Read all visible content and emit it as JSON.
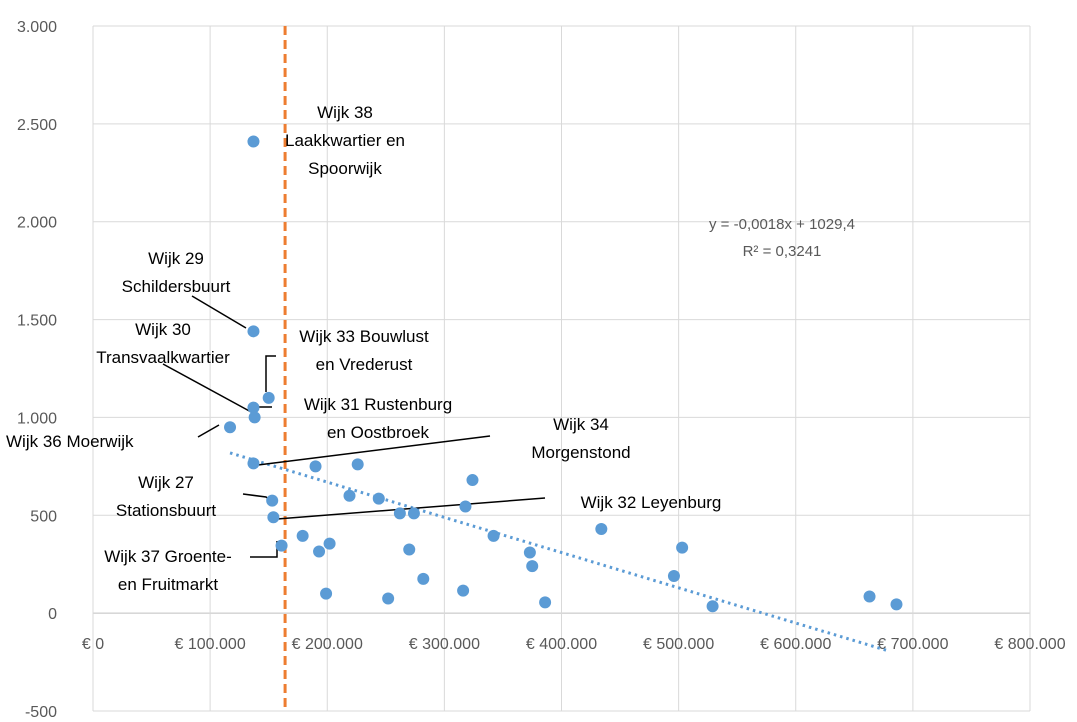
{
  "chart_data": {
    "type": "scatter",
    "colors": {
      "points": "#5b9bd5",
      "trendline": "#5b9bd5",
      "reference_line": "#ed7d31",
      "grid": "#d9d9d9",
      "text": "#595959"
    },
    "xlim": [
      0,
      800000
    ],
    "ylim": [
      -500,
      3000
    ],
    "grid": true,
    "legend": "none",
    "x_ticks": [
      {
        "value": 0,
        "label": "€ 0"
      },
      {
        "value": 100000,
        "label": "€ 100.000"
      },
      {
        "value": 200000,
        "label": "€ 200.000"
      },
      {
        "value": 300000,
        "label": "€ 300.000"
      },
      {
        "value": 400000,
        "label": "€ 400.000"
      },
      {
        "value": 500000,
        "label": "€ 500.000"
      },
      {
        "value": 600000,
        "label": "€ 600.000"
      },
      {
        "value": 700000,
        "label": "€ 700.000"
      },
      {
        "value": 800000,
        "label": "€ 800.000"
      }
    ],
    "y_ticks": [
      {
        "value": 3000,
        "label": "3.000"
      },
      {
        "value": 2500,
        "label": "2.500"
      },
      {
        "value": 2000,
        "label": "2.000"
      },
      {
        "value": 1500,
        "label": "1.500"
      },
      {
        "value": 1000,
        "label": "1.000"
      },
      {
        "value": 500,
        "label": "500"
      },
      {
        "value": 0,
        "label": "0"
      },
      {
        "value": -500,
        "label": "-500"
      }
    ],
    "reference_line_x": 164000,
    "trendline": {
      "slope": -0.0018,
      "intercept": 1029.4,
      "x_range": [
        117000,
        680000
      ],
      "equation": "y = -0,0018x + 1029,4",
      "r_squared": "R² = 0,3241"
    },
    "points": [
      {
        "x": 117000,
        "y": 950
      },
      {
        "x": 137000,
        "y": 2410
      },
      {
        "x": 137000,
        "y": 1440
      },
      {
        "x": 137000,
        "y": 1050
      },
      {
        "x": 138000,
        "y": 1000
      },
      {
        "x": 137000,
        "y": 765
      },
      {
        "x": 150000,
        "y": 1100
      },
      {
        "x": 153000,
        "y": 575
      },
      {
        "x": 154000,
        "y": 490
      },
      {
        "x": 161000,
        "y": 345
      },
      {
        "x": 179000,
        "y": 395
      },
      {
        "x": 190000,
        "y": 750
      },
      {
        "x": 193000,
        "y": 315
      },
      {
        "x": 199000,
        "y": 100
      },
      {
        "x": 202000,
        "y": 355
      },
      {
        "x": 219000,
        "y": 600
      },
      {
        "x": 226000,
        "y": 760
      },
      {
        "x": 244000,
        "y": 585
      },
      {
        "x": 252000,
        "y": 75
      },
      {
        "x": 262000,
        "y": 510
      },
      {
        "x": 270000,
        "y": 325
      },
      {
        "x": 274000,
        "y": 510
      },
      {
        "x": 282000,
        "y": 175
      },
      {
        "x": 316000,
        "y": 115
      },
      {
        "x": 318000,
        "y": 545
      },
      {
        "x": 324000,
        "y": 680
      },
      {
        "x": 342000,
        "y": 395
      },
      {
        "x": 373000,
        "y": 310
      },
      {
        "x": 375000,
        "y": 240
      },
      {
        "x": 386000,
        "y": 55
      },
      {
        "x": 434000,
        "y": 430
      },
      {
        "x": 496000,
        "y": 190
      },
      {
        "x": 503000,
        "y": 335
      },
      {
        "x": 529000,
        "y": 35
      },
      {
        "x": 663000,
        "y": 85
      },
      {
        "x": 686000,
        "y": 45
      }
    ],
    "annotations": [
      {
        "lines": [
          "Wijk 38",
          "Laakkwartier en",
          "Spoorwijk"
        ]
      },
      {
        "lines": [
          "Wijk 29",
          "Schildersbuurt"
        ]
      },
      {
        "lines": [
          "Wijk 30",
          "Transvaalkwartier"
        ]
      },
      {
        "lines": [
          "Wijk 33 Bouwlust",
          "en Vrederust"
        ]
      },
      {
        "lines": [
          "Wijk 31 Rustenburg",
          "en Oostbroek"
        ]
      },
      {
        "lines": [
          "Wijk 36 Moerwijk"
        ]
      },
      {
        "lines": [
          "Wijk 34",
          "Morgenstond"
        ]
      },
      {
        "lines": [
          "Wijk 27",
          "Stationsbuurt"
        ]
      },
      {
        "lines": [
          "Wijk 32 Leyenburg"
        ]
      },
      {
        "lines": [
          "Wijk 37 Groente-",
          "en Fruitmarkt"
        ]
      }
    ]
  }
}
